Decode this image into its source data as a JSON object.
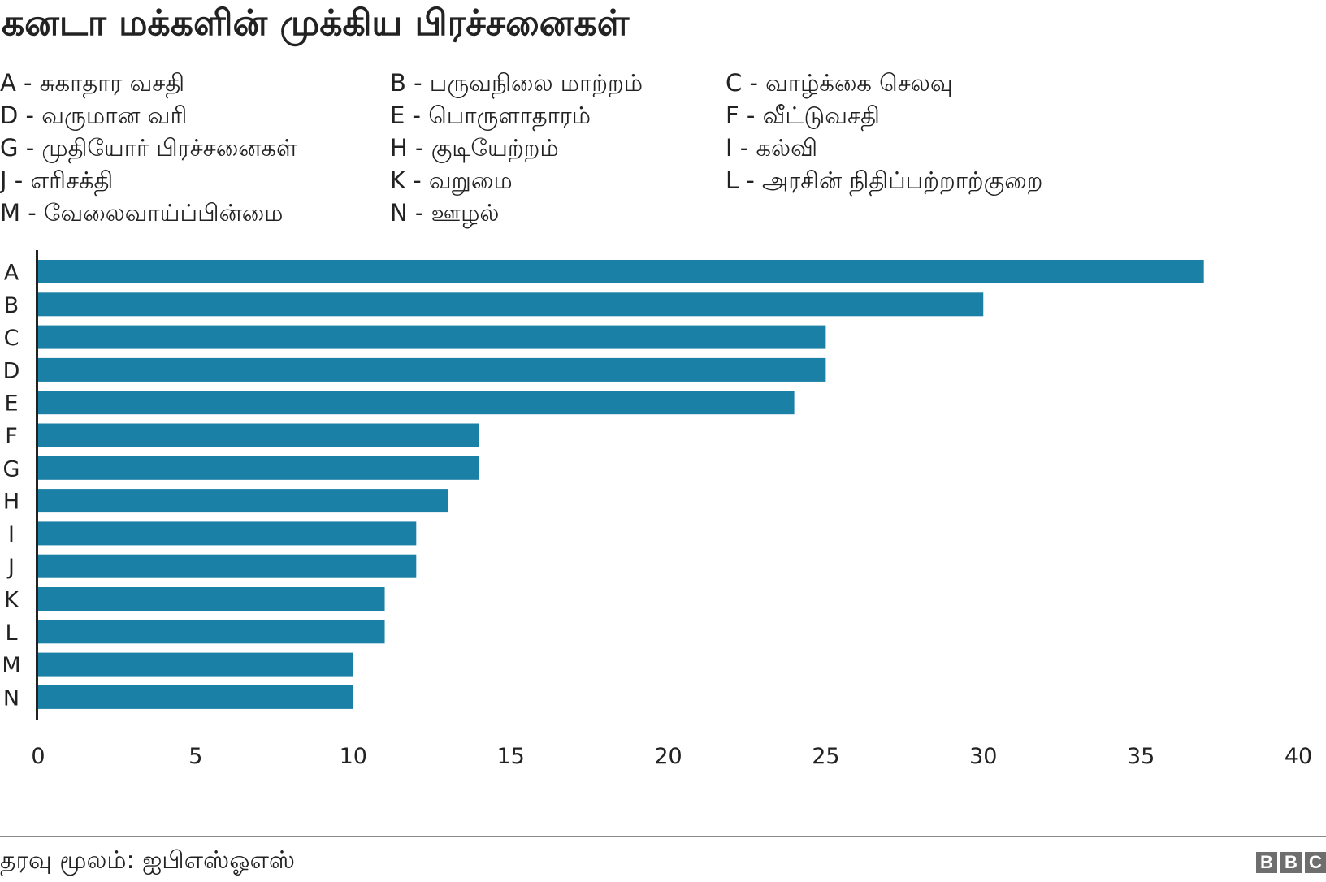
{
  "title": "கனடா மக்களின் முக்கிய பிரச்சனைகள்",
  "legend": [
    {
      "key": "A",
      "text": "A - சுகாதார வசதி"
    },
    {
      "key": "B",
      "text": "B - பருவநிலை மாற்றம்"
    },
    {
      "key": "C",
      "text": "C - வாழ்க்கை செலவு"
    },
    {
      "key": "D",
      "text": "D - வருமான வரி"
    },
    {
      "key": "E",
      "text": "E - பொருளாதாரம்"
    },
    {
      "key": "F",
      "text": "F - வீட்டுவசதி"
    },
    {
      "key": "G",
      "text": "G - முதியோர் பிரச்சனைகள்"
    },
    {
      "key": "H",
      "text": "H - குடியேற்றம்"
    },
    {
      "key": "I",
      "text": "I - கல்வி"
    },
    {
      "key": "J",
      "text": "J - எரிசக்தி"
    },
    {
      "key": "K",
      "text": "K - வறுமை"
    },
    {
      "key": "L",
      "text": "L - அரசின் நிதிப்பற்றாற்குறை"
    },
    {
      "key": "M",
      "text": "M - வேலைவாய்ப்பின்மை"
    },
    {
      "key": "N",
      "text": "N - ஊழல்"
    }
  ],
  "chart_data": {
    "type": "bar",
    "orientation": "horizontal",
    "categories": [
      "A",
      "B",
      "C",
      "D",
      "E",
      "F",
      "G",
      "H",
      "I",
      "J",
      "K",
      "L",
      "M",
      "N"
    ],
    "values": [
      37,
      30,
      25,
      25,
      24,
      14,
      14,
      13,
      12,
      12,
      11,
      11,
      10,
      10
    ],
    "xlim": [
      0,
      40
    ],
    "xticks": [
      "0",
      "5",
      "10",
      "15",
      "20",
      "25",
      "30",
      "35",
      "40"
    ],
    "grid": false,
    "bar_color": "#1a80a5",
    "axis_color": "#222222"
  },
  "footer": {
    "source": "தரவு மூலம்: ஐபிஎஸ்ஓஎஸ்",
    "logo": [
      "B",
      "B",
      "C"
    ]
  }
}
